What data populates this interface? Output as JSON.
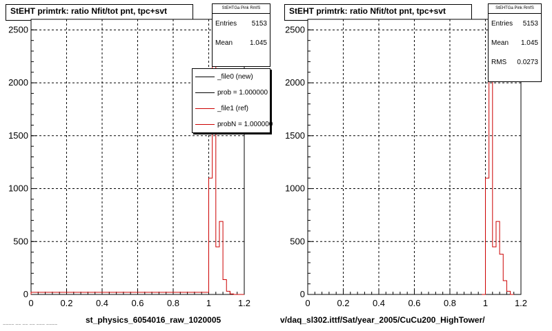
{
  "chart_data": [
    {
      "type": "histogram",
      "title": "StEHT primtrk: ratio Nfit/tot pnt, tpc+svt",
      "xlabel": "st_physics_6054016_raw_1020005",
      "xlim": [
        0,
        1.2
      ],
      "ylim": [
        0,
        2600
      ],
      "xticks": [
        "0",
        "0.2",
        "0.4",
        "0.6",
        "0.8",
        "1",
        "1.2"
      ],
      "yticks": [
        "0",
        "500",
        "1000",
        "1500",
        "2000",
        "2500"
      ],
      "grid": true,
      "stats": {
        "title": "StEHTGa Pink RmfS",
        "entries_label": "Entries",
        "entries": "5153",
        "mean_label": "Mean",
        "mean": "1.045"
      },
      "legend": [
        {
          "label": "_file0 (new)",
          "color": "#000000"
        },
        {
          "label": "prob = 1.000000",
          "color": "#000000"
        },
        {
          "label": "_file1 (ref)",
          "color": "#cc0000"
        },
        {
          "label": "probN = 1.000000",
          "color": "#cc0000"
        }
      ],
      "series": [
        {
          "name": "_file1 (ref)",
          "color": "#cc0000",
          "bin_edges": [
            0,
            1.0,
            1.02,
            1.04,
            1.06,
            1.08,
            1.1,
            1.12,
            1.14,
            1.2
          ],
          "values": [
            20,
            1100,
            2600,
            450,
            690,
            140,
            30,
            5,
            0
          ]
        }
      ]
    },
    {
      "type": "histogram",
      "title": "StEHT primtrk: ratio Nfit/tot pnt, tpc+svt",
      "xlabel": "v/daq_sl302.ittf/Sat/year_2005/CuCu200_HighTower/",
      "xlim": [
        0,
        1.2
      ],
      "ylim": [
        0,
        2600
      ],
      "xticks": [
        "0",
        "0.2",
        "0.4",
        "0.6",
        "0.8",
        "1",
        "1.2"
      ],
      "yticks": [
        "0",
        "500",
        "1000",
        "1500",
        "2000",
        "2500"
      ],
      "grid": true,
      "stats": {
        "title": "StEHTGa Pink RmfS",
        "entries_label": "Entries",
        "entries": "5153",
        "mean_label": "Mean",
        "mean": "1.045",
        "rms_label": "RMS",
        "rms": "0.0273"
      },
      "series": [
        {
          "name": "",
          "color": "#cc0000",
          "bin_edges": [
            0.98,
            1.0,
            1.02,
            1.04,
            1.06,
            1.08,
            1.1,
            1.12,
            1.14,
            1.16
          ],
          "values": [
            0,
            1100,
            2600,
            450,
            690,
            380,
            130,
            30,
            0
          ]
        }
      ]
    }
  ],
  "footer_text": "~~~~ ~~ ~~ ~~ ~~~ ~~~~"
}
